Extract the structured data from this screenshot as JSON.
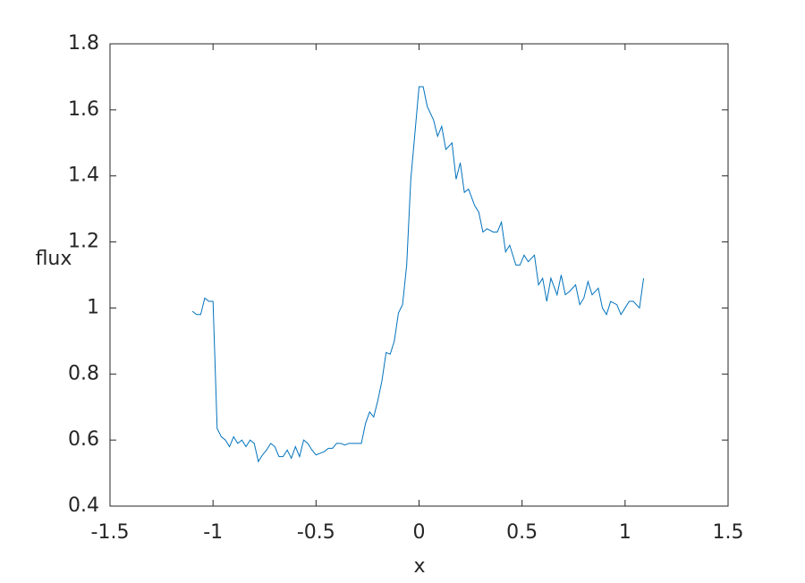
{
  "chart_data": {
    "type": "line",
    "x_label": "x",
    "y_label": "flux",
    "x": [
      -1.1,
      -1.08,
      -1.06,
      -1.04,
      -1.02,
      -1.0,
      -0.98,
      -0.96,
      -0.94,
      -0.92,
      -0.9,
      -0.88,
      -0.86,
      -0.84,
      -0.82,
      -0.8,
      -0.78,
      -0.76,
      -0.74,
      -0.72,
      -0.7,
      -0.68,
      -0.66,
      -0.64,
      -0.62,
      -0.6,
      -0.58,
      -0.56,
      -0.54,
      -0.52,
      -0.5,
      -0.48,
      -0.46,
      -0.44,
      -0.42,
      -0.4,
      -0.38,
      -0.36,
      -0.34,
      -0.32,
      -0.3,
      -0.28,
      -0.26,
      -0.24,
      -0.22,
      -0.2,
      -0.18,
      -0.16,
      -0.14,
      -0.12,
      -0.1,
      -0.08,
      -0.06,
      -0.04,
      0,
      0.02,
      0.04,
      0.07,
      0.09,
      0.11,
      0.13,
      0.16,
      0.18,
      0.2,
      0.22,
      0.24,
      0.27,
      0.29,
      0.31,
      0.33,
      0.36,
      0.38,
      0.4,
      0.42,
      0.44,
      0.47,
      0.49,
      0.51,
      0.53,
      0.56,
      0.58,
      0.6,
      0.62,
      0.64,
      0.67,
      0.69,
      0.71,
      0.73,
      0.76,
      0.78,
      0.8,
      0.82,
      0.84,
      0.87,
      0.89,
      0.91,
      0.93,
      0.96,
      0.98,
      1.0,
      1.02,
      1.04,
      1.07,
      1.09
    ],
    "series": [
      {
        "color": "#0072bd",
        "values": [
          0.99,
          0.98,
          0.98,
          1.03,
          1.02,
          1.02,
          0.635,
          0.61,
          0.6,
          0.58,
          0.61,
          0.59,
          0.6,
          0.58,
          0.6,
          0.59,
          0.535,
          0.555,
          0.57,
          0.59,
          0.58,
          0.55,
          0.55,
          0.57,
          0.545,
          0.58,
          0.55,
          0.6,
          0.59,
          0.57,
          0.555,
          0.56,
          0.565,
          0.575,
          0.575,
          0.59,
          0.59,
          0.585,
          0.59,
          0.59,
          0.59,
          0.59,
          0.65,
          0.685,
          0.67,
          0.72,
          0.78,
          0.865,
          0.86,
          0.9,
          0.985,
          1.01,
          1.13,
          1.39,
          1.67,
          1.67,
          1.61,
          1.57,
          1.52,
          1.55,
          1.48,
          1.5,
          1.39,
          1.44,
          1.35,
          1.36,
          1.31,
          1.29,
          1.23,
          1.24,
          1.23,
          1.23,
          1.26,
          1.17,
          1.19,
          1.13,
          1.13,
          1.16,
          1.14,
          1.16,
          1.07,
          1.09,
          1.02,
          1.09,
          1.04,
          1.1,
          1.04,
          1.05,
          1.07,
          1.01,
          1.03,
          1.08,
          1.04,
          1.06,
          1.0,
          0.98,
          1.02,
          1.01,
          0.98,
          1.0,
          1.02,
          1.02,
          1.0,
          1.09
        ]
      }
    ],
    "xlim": [
      -1.5,
      1.5
    ],
    "xticks": [
      -1.5,
      -1,
      -0.5,
      0,
      0.5,
      1,
      1.5
    ],
    "ylim": [
      0.4,
      1.8
    ],
    "yticks": [
      0.4,
      0.6,
      0.8,
      1,
      1.2,
      1.4,
      1.6,
      1.8
    ],
    "grid": false
  }
}
